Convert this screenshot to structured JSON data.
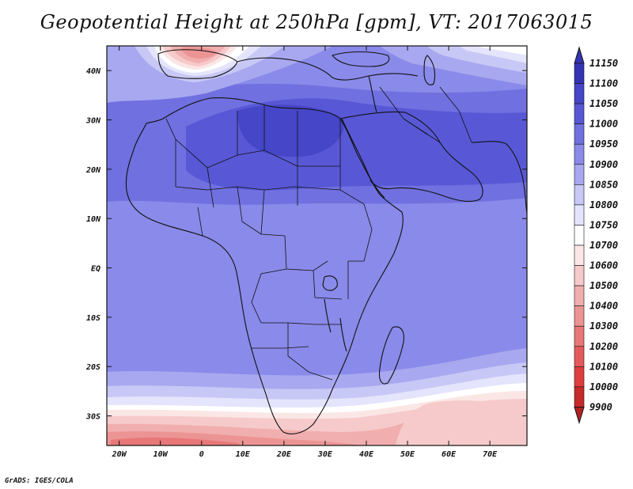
{
  "title": "Geopotential Height at 250hPa [gpm], VT: 2017063015",
  "credit": "GrADS: IGES/COLA",
  "colors": {
    "9900": "#b22222",
    "10000": "#c62a2a",
    "10100": "#e03e3e",
    "10200": "#e45a5a",
    "10300": "#e87777",
    "10400": "#ec9494",
    "10500": "#f1aeae",
    "10600": "#f6caca",
    "10700": "#fbe6e6",
    "10750": "#ffffff",
    "10800": "#e4e4fc",
    "10850": "#c8c8f6",
    "10900": "#a8a8f0",
    "10950": "#8a8aea",
    "11000": "#7070e0",
    "11050": "#5858d6",
    "11100": "#4646c8",
    "11150": "#3434b4"
  },
  "map": {
    "lon_range": [
      -23,
      79
    ],
    "lat_range": [
      -36,
      45
    ],
    "x_ticks": [
      "20W",
      "10W",
      "0",
      "10E",
      "20E",
      "30E",
      "40E",
      "50E",
      "60E",
      "70E"
    ],
    "x_tick_values": [
      -20,
      -10,
      0,
      10,
      20,
      30,
      40,
      50,
      60,
      70
    ],
    "y_ticks": [
      "40N",
      "30N",
      "20N",
      "10N",
      "EQ",
      "10S",
      "20S",
      "30S"
    ],
    "y_tick_values": [
      40,
      30,
      20,
      10,
      0,
      -10,
      -20,
      -30
    ]
  },
  "colorbar": {
    "levels": [
      "11150",
      "11100",
      "11050",
      "11000",
      "10950",
      "10900",
      "10850",
      "10800",
      "10750",
      "10700",
      "10600",
      "10500",
      "10400",
      "10300",
      "10200",
      "10100",
      "10000",
      "9900"
    ]
  }
}
